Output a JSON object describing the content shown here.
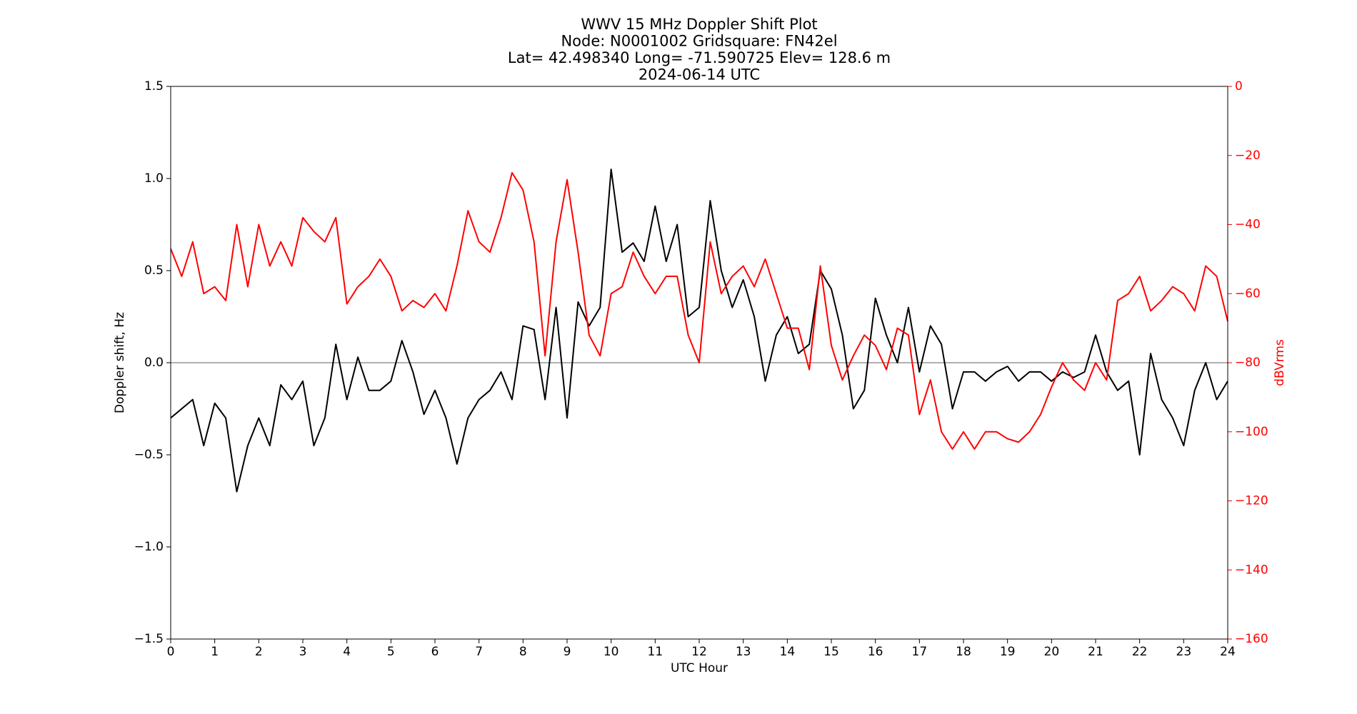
{
  "chart_data": {
    "type": "line",
    "title": [
      "WWV 15 MHz Doppler Shift Plot",
      "Node:  N0001002      Gridsquare:  FN42el",
      "Lat= 42.498340    Long= -71.590725    Elev= 128.6 m",
      "2024-06-14  UTC"
    ],
    "xlabel": "UTC Hour",
    "ylabel": "Doppler shift, Hz",
    "y2label": "dBVrms",
    "x": [
      0,
      0.25,
      0.5,
      0.75,
      1,
      1.25,
      1.5,
      1.75,
      2,
      2.25,
      2.5,
      2.75,
      3,
      3.25,
      3.5,
      3.75,
      4,
      4.25,
      4.5,
      4.75,
      5,
      5.25,
      5.5,
      5.75,
      6,
      6.25,
      6.5,
      6.75,
      7,
      7.25,
      7.5,
      7.75,
      8,
      8.25,
      8.5,
      8.75,
      9,
      9.25,
      9.5,
      9.75,
      10,
      10.25,
      10.5,
      10.75,
      11,
      11.25,
      11.5,
      11.75,
      12,
      12.25,
      12.5,
      12.75,
      13,
      13.25,
      13.5,
      13.75,
      14,
      14.25,
      14.5,
      14.75,
      15,
      15.25,
      15.5,
      15.75,
      16,
      16.25,
      16.5,
      16.75,
      17,
      17.25,
      17.5,
      17.75,
      18,
      18.25,
      18.5,
      18.75,
      19,
      19.25,
      19.5,
      19.75,
      20,
      20.25,
      20.5,
      20.75,
      21,
      21.25,
      21.5,
      21.75,
      22,
      22.25,
      22.5,
      22.75,
      23,
      23.25,
      23.5,
      23.75,
      24
    ],
    "series": [
      {
        "color": "#000000",
        "axis": "y",
        "values": [
          -0.3,
          -0.25,
          -0.2,
          -0.45,
          -0.22,
          -0.3,
          -0.7,
          -0.45,
          -0.3,
          -0.45,
          -0.12,
          -0.2,
          -0.1,
          -0.45,
          -0.3,
          0.1,
          -0.2,
          0.03,
          -0.15,
          -0.15,
          -0.1,
          0.12,
          -0.05,
          -0.28,
          -0.15,
          -0.3,
          -0.55,
          -0.3,
          -0.2,
          -0.15,
          -0.05,
          -0.2,
          0.2,
          0.18,
          -0.2,
          0.3,
          -0.3,
          0.33,
          0.2,
          0.3,
          1.05,
          0.6,
          0.65,
          0.55,
          0.85,
          0.55,
          0.75,
          0.25,
          0.3,
          0.88,
          0.5,
          0.3,
          0.45,
          0.25,
          -0.1,
          0.15,
          0.25,
          0.05,
          0.1,
          0.5,
          0.4,
          0.15,
          -0.25,
          -0.15,
          0.35,
          0.15,
          0.0,
          0.3,
          -0.05,
          0.2,
          0.1,
          -0.25,
          -0.05,
          -0.05,
          -0.1,
          -0.05,
          -0.02,
          -0.1,
          -0.05,
          -0.05,
          -0.1,
          -0.05,
          -0.08,
          -0.05,
          0.15,
          -0.05,
          -0.15,
          -0.1,
          -0.5,
          0.05,
          -0.2,
          -0.3,
          -0.45,
          -0.15,
          0.0,
          -0.2,
          -0.1
        ]
      },
      {
        "color": "#ff0000",
        "axis": "y2",
        "values": [
          -47,
          -55,
          -45,
          -60,
          -58,
          -62,
          -40,
          -58,
          -40,
          -52,
          -45,
          -52,
          -38,
          -42,
          -45,
          -38,
          -63,
          -58,
          -55,
          -50,
          -55,
          -65,
          -62,
          -64,
          -60,
          -65,
          -52,
          -36,
          -45,
          -48,
          -38,
          -25,
          -30,
          -45,
          -78,
          -45,
          -27,
          -48,
          -72,
          -78,
          -60,
          -58,
          -48,
          -55,
          -60,
          -55,
          -55,
          -72,
          -80,
          -45,
          -60,
          -55,
          -52,
          -58,
          -50,
          -60,
          -70,
          -70,
          -82,
          -52,
          -75,
          -85,
          -78,
          -72,
          -75,
          -82,
          -70,
          -72,
          -95,
          -85,
          -100,
          -105,
          -100,
          -105,
          -100,
          -100,
          -102,
          -103,
          -100,
          -95,
          -87,
          -80,
          -85,
          -88,
          -80,
          -85,
          -62,
          -60,
          -55,
          -65,
          -62,
          -58,
          -60,
          -65,
          -52,
          -55,
          -68
        ]
      }
    ],
    "reference_line": 0,
    "xlim": [
      0,
      24
    ],
    "xticks": [
      0,
      1,
      2,
      3,
      4,
      5,
      6,
      7,
      8,
      9,
      10,
      11,
      12,
      13,
      14,
      15,
      16,
      17,
      18,
      19,
      20,
      21,
      22,
      23,
      24
    ],
    "ylim": [
      -1.5,
      1.5
    ],
    "yticks": [
      {
        "value": -1.5,
        "label": "−1.5"
      },
      {
        "value": -1.0,
        "label": "−1.0"
      },
      {
        "value": -0.5,
        "label": "−0.5"
      },
      {
        "value": 0,
        "label": "0.0"
      },
      {
        "value": 0.5,
        "label": "0.5"
      },
      {
        "value": 1.0,
        "label": "1.0"
      },
      {
        "value": 1.5,
        "label": "1.5"
      }
    ],
    "y2lim": [
      -160,
      0
    ],
    "y2ticks": [
      {
        "value": -160,
        "label": "−160"
      },
      {
        "value": -140,
        "label": "−140"
      },
      {
        "value": -120,
        "label": "−120"
      },
      {
        "value": -100,
        "label": "−100"
      },
      {
        "value": -80,
        "label": "−80"
      },
      {
        "value": -60,
        "label": "−60"
      },
      {
        "value": -40,
        "label": "−40"
      },
      {
        "value": -20,
        "label": "−20"
      },
      0
    ],
    "y2color": "#ff0000"
  }
}
